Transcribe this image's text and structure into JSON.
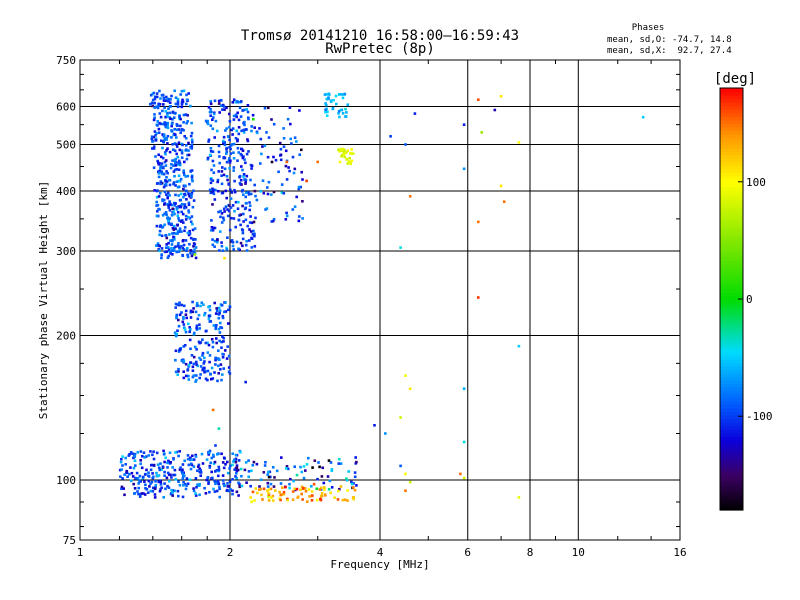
{
  "chart_data": {
    "type": "scatter",
    "title": "Tromsø 20141210 16:58:00–16:59:43",
    "subtitle": "RwPretec (8p)",
    "xlabel": "Frequency [MHz]",
    "ylabel": "Stationary phase Virtual Height [km]",
    "x_scale": "log",
    "y_scale": "log",
    "xlim": [
      1,
      16
    ],
    "ylim": [
      75,
      750
    ],
    "x_ticks": [
      1,
      2,
      4,
      6,
      8,
      10,
      16
    ],
    "x_tick_labels": [
      "1",
      "2",
      "4",
      "6",
      "8",
      "10",
      "16"
    ],
    "y_ticks": [
      75,
      100,
      200,
      300,
      400,
      500,
      600,
      750
    ],
    "y_tick_labels": [
      "75",
      "100",
      "200",
      "300",
      "400",
      "500",
      "600",
      "750"
    ],
    "grid": true,
    "stats": {
      "heading": "Phases",
      "line_o": "mean, sd,O: -74.7, 14.8",
      "line_x": "mean, sd,X:  92.7, 27.4"
    },
    "colorbar": {
      "label": "[deg]",
      "ticks": [
        100,
        0,
        -100
      ],
      "tick_labels": [
        "100",
        "0",
        "-100"
      ],
      "range": [
        -180,
        180
      ]
    },
    "point_groups": [
      {
        "xmin": 1.38,
        "xmax": 1.72,
        "ymin": 290,
        "ymax": 650,
        "n": 520,
        "phase": -95,
        "spread": 18
      },
      {
        "xmin": 1.78,
        "xmax": 2.25,
        "ymin": 300,
        "ymax": 620,
        "n": 300,
        "phase": -100,
        "spread": 18
      },
      {
        "xmin": 2.2,
        "xmax": 2.8,
        "ymin": 340,
        "ymax": 600,
        "n": 90,
        "phase": -100,
        "spread": 25
      },
      {
        "xmin": 1.55,
        "xmax": 2.0,
        "ymin": 160,
        "ymax": 235,
        "n": 220,
        "phase": -95,
        "spread": 18
      },
      {
        "xmin": 1.2,
        "xmax": 2.1,
        "ymin": 92,
        "ymax": 115,
        "n": 320,
        "phase": -95,
        "spread": 22
      },
      {
        "xmin": 2.05,
        "xmax": 3.6,
        "ymin": 95,
        "ymax": 112,
        "n": 90,
        "phase": -100,
        "spread": 40
      },
      {
        "xmin": 2.2,
        "xmax": 3.6,
        "ymin": 90,
        "ymax": 97,
        "n": 80,
        "phase": 130,
        "spread": 25
      },
      {
        "xmin": 3.1,
        "xmax": 3.45,
        "ymin": 570,
        "ymax": 640,
        "n": 40,
        "phase": -60,
        "spread": 12
      },
      {
        "xmin": 3.3,
        "xmax": 3.55,
        "ymin": 455,
        "ymax": 490,
        "n": 30,
        "phase": 85,
        "spread": 10
      }
    ],
    "points": [
      {
        "x": 4.2,
        "y": 520,
        "phase": -100
      },
      {
        "x": 4.5,
        "y": 500,
        "phase": -90
      },
      {
        "x": 4.7,
        "y": 580,
        "phase": -110
      },
      {
        "x": 4.6,
        "y": 390,
        "phase": 150
      },
      {
        "x": 4.4,
        "y": 305,
        "phase": -40
      },
      {
        "x": 5.9,
        "y": 550,
        "phase": -110
      },
      {
        "x": 5.9,
        "y": 445,
        "phase": -70
      },
      {
        "x": 6.3,
        "y": 620,
        "phase": 160
      },
      {
        "x": 6.3,
        "y": 345,
        "phase": 150
      },
      {
        "x": 6.3,
        "y": 240,
        "phase": 165
      },
      {
        "x": 6.4,
        "y": 530,
        "phase": 60
      },
      {
        "x": 6.8,
        "y": 590,
        "phase": -130
      },
      {
        "x": 7.0,
        "y": 630,
        "phase": 110
      },
      {
        "x": 7.0,
        "y": 410,
        "phase": 110
      },
      {
        "x": 7.1,
        "y": 380,
        "phase": 150
      },
      {
        "x": 7.6,
        "y": 505,
        "phase": 100
      },
      {
        "x": 7.6,
        "y": 190,
        "phase": -50
      },
      {
        "x": 7.6,
        "y": 92,
        "phase": 90
      },
      {
        "x": 13.5,
        "y": 570,
        "phase": -50
      },
      {
        "x": 4.5,
        "y": 165,
        "phase": 95
      },
      {
        "x": 4.6,
        "y": 155,
        "phase": 110
      },
      {
        "x": 4.4,
        "y": 135,
        "phase": 80
      },
      {
        "x": 4.1,
        "y": 125,
        "phase": -70
      },
      {
        "x": 3.9,
        "y": 130,
        "phase": -110
      },
      {
        "x": 4.4,
        "y": 107,
        "phase": -90
      },
      {
        "x": 4.5,
        "y": 103,
        "phase": 100
      },
      {
        "x": 4.6,
        "y": 99,
        "phase": 80
      },
      {
        "x": 4.5,
        "y": 95,
        "phase": 150
      },
      {
        "x": 5.9,
        "y": 155,
        "phase": -60
      },
      {
        "x": 5.9,
        "y": 120,
        "phase": -40
      },
      {
        "x": 5.8,
        "y": 103,
        "phase": 150
      },
      {
        "x": 5.9,
        "y": 101,
        "phase": 85
      },
      {
        "x": 1.85,
        "y": 140,
        "phase": 150
      },
      {
        "x": 1.9,
        "y": 128,
        "phase": -30
      },
      {
        "x": 1.87,
        "y": 118,
        "phase": -100
      },
      {
        "x": 2.15,
        "y": 160,
        "phase": -110
      },
      {
        "x": 2.6,
        "y": 460,
        "phase": 155
      },
      {
        "x": 2.85,
        "y": 420,
        "phase": 165
      },
      {
        "x": 3.0,
        "y": 460,
        "phase": 150
      },
      {
        "x": 2.95,
        "y": 98,
        "phase": 160
      },
      {
        "x": 1.95,
        "y": 290,
        "phase": 110
      },
      {
        "x": 1.7,
        "y": 295,
        "phase": 60
      }
    ]
  }
}
